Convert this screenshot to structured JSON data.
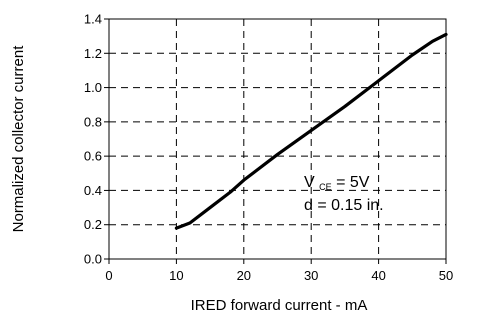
{
  "chart_data": {
    "type": "line",
    "xlabel": "IRED forward current - mA",
    "ylabel": "Normalized collector current",
    "xlim": [
      0,
      50
    ],
    "ylim": [
      0,
      1.4
    ],
    "xticks": [
      0,
      10,
      20,
      30,
      40,
      50
    ],
    "yticks": [
      0.0,
      0.2,
      0.4,
      0.6,
      0.8,
      1.0,
      1.2,
      1.4
    ],
    "xtick_labels": [
      "0",
      "10",
      "20",
      "30",
      "40",
      "50"
    ],
    "ytick_labels": [
      "0.0",
      "0.2",
      "0.4",
      "0.6",
      "0.8",
      "1.0",
      "1.2",
      "1.4"
    ],
    "grid": true,
    "grid_style": "dashed",
    "series": [
      {
        "x": [
          10,
          12,
          15,
          18,
          20,
          25,
          30,
          35,
          40,
          45,
          48,
          50
        ],
        "y": [
          0.18,
          0.21,
          0.3,
          0.39,
          0.46,
          0.61,
          0.75,
          0.89,
          1.04,
          1.19,
          1.27,
          1.31
        ]
      }
    ],
    "annotations": {
      "vce_main": "V",
      "vce_sub": "CE",
      "vce_rest": " = 5V",
      "distance": "d = 0.15 in."
    },
    "colors": {
      "line": "#000000",
      "grid": "#000000",
      "background": "#ffffff"
    }
  }
}
